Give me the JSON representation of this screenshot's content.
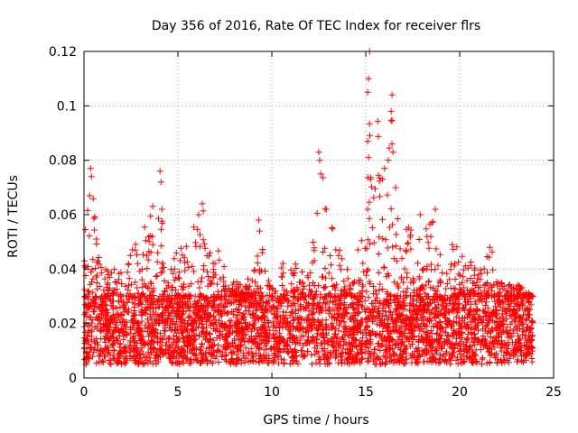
{
  "chart_data": {
    "type": "scatter",
    "title": "Day 356 of 2016, Rate Of TEC Index for receiver flrs",
    "xlabel": "GPS time / hours",
    "ylabel": "ROTI / TECUs",
    "xlim": [
      0,
      25
    ],
    "ylim": [
      0,
      0.12
    ],
    "xticks": [
      0,
      5,
      10,
      15,
      20,
      25
    ],
    "xtick_labels": [
      "0",
      "5",
      "10",
      "15",
      "20",
      "25"
    ],
    "yticks": [
      0,
      0.02,
      0.04,
      0.06,
      0.08,
      0.1,
      0.12
    ],
    "ytick_labels": [
      "0",
      "0.02",
      "0.04",
      "0.06",
      "0.08",
      "0.1",
      "0.12"
    ],
    "grid": true,
    "marker": "+",
    "color": "#ff0000",
    "data_range_x": [
      0,
      23.9
    ],
    "series": [
      {
        "name": "ROTI",
        "envelope_hours": [
          0,
          0.3,
          1,
          2,
          3,
          4,
          4.5,
          5.5,
          6.3,
          7,
          8,
          9,
          9.3,
          10,
          11,
          12,
          12.5,
          13,
          14,
          15,
          15.3,
          16,
          16.5,
          17,
          18,
          18.7,
          19.5,
          20,
          21,
          21.7,
          22,
          23,
          23.9
        ],
        "envelope_max": [
          0.05,
          0.078,
          0.04,
          0.04,
          0.053,
          0.076,
          0.045,
          0.05,
          0.064,
          0.05,
          0.035,
          0.038,
          0.058,
          0.038,
          0.045,
          0.04,
          0.083,
          0.062,
          0.04,
          0.055,
          0.12,
          0.077,
          0.104,
          0.055,
          0.06,
          0.062,
          0.05,
          0.048,
          0.04,
          0.048,
          0.035,
          0.035,
          0.03
        ],
        "bulk_range": [
          0.005,
          0.03
        ],
        "outliers": [
          {
            "x": 0.35,
            "y": 0.077
          },
          {
            "x": 0.4,
            "y": 0.074
          },
          {
            "x": 0.3,
            "y": 0.067
          },
          {
            "x": 4.05,
            "y": 0.076
          },
          {
            "x": 4.1,
            "y": 0.072
          },
          {
            "x": 4.15,
            "y": 0.062
          },
          {
            "x": 6.3,
            "y": 0.064
          },
          {
            "x": 9.3,
            "y": 0.058
          },
          {
            "x": 9.35,
            "y": 0.054
          },
          {
            "x": 12.5,
            "y": 0.083
          },
          {
            "x": 12.55,
            "y": 0.08
          },
          {
            "x": 12.6,
            "y": 0.075
          },
          {
            "x": 15.2,
            "y": 0.12
          },
          {
            "x": 15.15,
            "y": 0.11
          },
          {
            "x": 15.1,
            "y": 0.105
          },
          {
            "x": 15.1,
            "y": 0.087
          },
          {
            "x": 15.15,
            "y": 0.081
          },
          {
            "x": 15.25,
            "y": 0.073
          },
          {
            "x": 16.4,
            "y": 0.104
          },
          {
            "x": 16.35,
            "y": 0.098
          },
          {
            "x": 16.4,
            "y": 0.086
          },
          {
            "x": 16.45,
            "y": 0.083
          },
          {
            "x": 16.0,
            "y": 0.077
          },
          {
            "x": 15.9,
            "y": 0.073
          },
          {
            "x": 17.9,
            "y": 0.06
          },
          {
            "x": 18.7,
            "y": 0.062
          },
          {
            "x": 19.6,
            "y": 0.049
          },
          {
            "x": 21.6,
            "y": 0.048
          },
          {
            "x": 12.9,
            "y": 0.062
          },
          {
            "x": 6.1,
            "y": 0.06
          }
        ]
      }
    ]
  }
}
